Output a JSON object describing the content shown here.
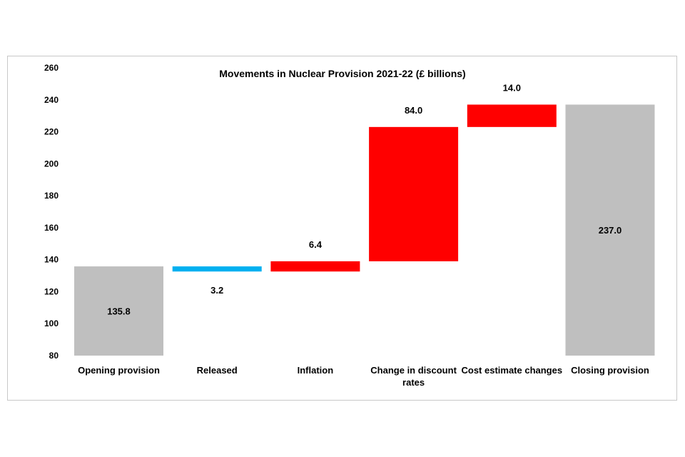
{
  "chart_data": {
    "type": "waterfall",
    "title": "Movements in Nuclear Provision 2021-22 (£ billions)",
    "xlabel": "",
    "ylabel": "",
    "ylim": [
      80,
      260
    ],
    "yticks": [
      80,
      100,
      120,
      140,
      160,
      180,
      200,
      220,
      240,
      260
    ],
    "grid": false,
    "legend": "none",
    "steps": [
      {
        "label": "Opening provision",
        "kind": "total",
        "start": 80,
        "end": 135.8,
        "data_label": "135.8",
        "color": "#bfbfbf",
        "label_pos": "inside"
      },
      {
        "label": "Released",
        "kind": "decrease",
        "start": 135.8,
        "end": 132.6,
        "data_label": "3.2",
        "color": "#00b0f0",
        "label_pos": "below"
      },
      {
        "label": "Inflation",
        "kind": "increase",
        "start": 132.6,
        "end": 139.0,
        "data_label": "6.4",
        "color": "#ff0000",
        "label_pos": "above"
      },
      {
        "label_lines": [
          "Change in discount",
          "rates"
        ],
        "label": "Change in discount rates",
        "kind": "increase",
        "start": 139.0,
        "end": 223.0,
        "data_label": "84.0",
        "color": "#ff0000",
        "label_pos": "above"
      },
      {
        "label": "Cost estimate changes",
        "kind": "increase",
        "start": 223.0,
        "end": 237.0,
        "data_label": "14.0",
        "color": "#ff0000",
        "label_pos": "above"
      },
      {
        "label": "Closing provision",
        "kind": "total",
        "start": 80,
        "end": 237.0,
        "data_label": "237.0",
        "color": "#bfbfbf",
        "label_pos": "inside"
      }
    ]
  }
}
